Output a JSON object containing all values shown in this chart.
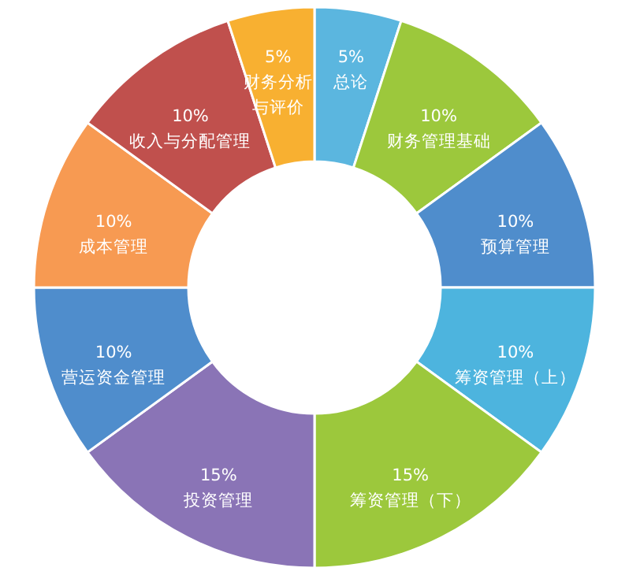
{
  "chart_data": {
    "type": "donut",
    "categories": [
      "总论",
      "财务管理基础",
      "预算管理",
      "筹资管理（上）",
      "筹资管理（下）",
      "投资管理",
      "营运资金管理",
      "成本管理",
      "收入与分配管理",
      "财务分析与评价"
    ],
    "values": [
      5,
      10,
      10,
      10,
      15,
      15,
      10,
      10,
      10,
      5
    ],
    "value_labels": [
      "5%",
      "10%",
      "10%",
      "10%",
      "15%",
      "15%",
      "10%",
      "10%",
      "10%",
      "5%"
    ],
    "colors": [
      "#5bb6df",
      "#9cc83c",
      "#4f8dcc",
      "#4db4de",
      "#9cc83c",
      "#8a74b6",
      "#4f8dcc",
      "#f79a52",
      "#c0504d",
      "#f8b031"
    ],
    "legend": false
  }
}
